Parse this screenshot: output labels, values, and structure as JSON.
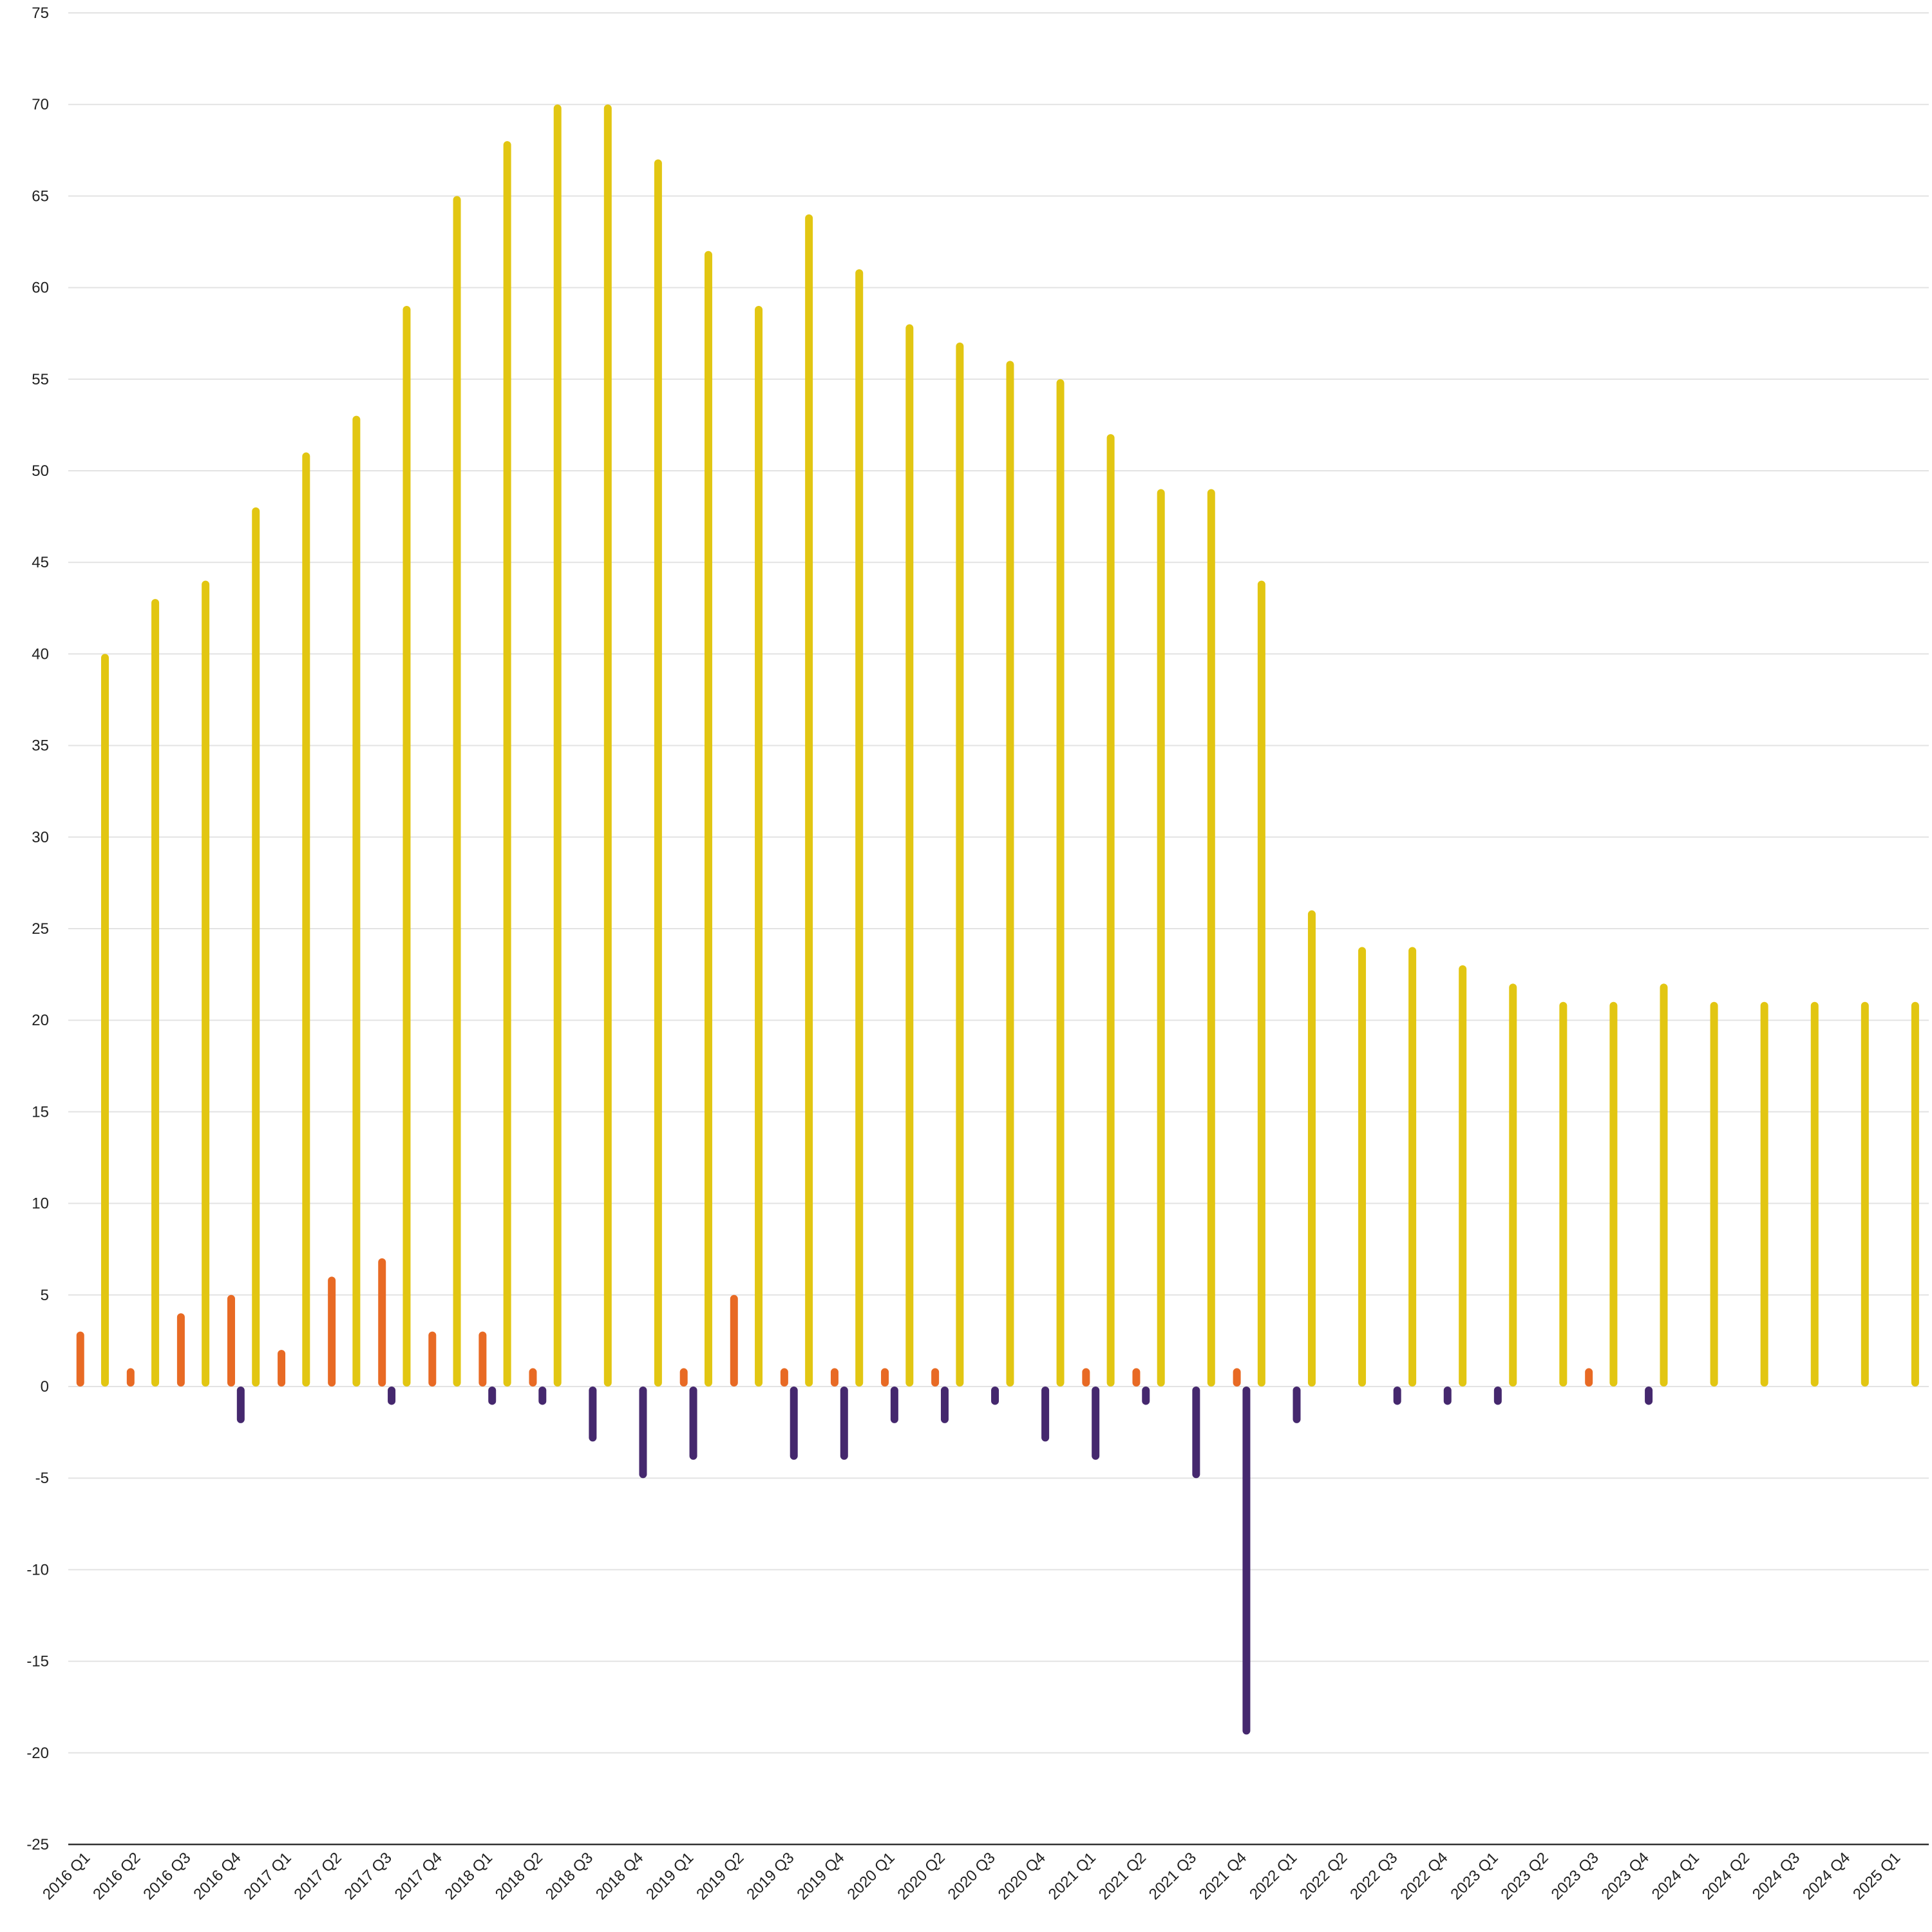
{
  "chart_data": {
    "type": "bar",
    "title": "",
    "xlabel": "",
    "ylabel": "",
    "ylim": [
      -25,
      75
    ],
    "yticks": [
      75,
      70,
      65,
      60,
      55,
      50,
      45,
      40,
      35,
      30,
      25,
      20,
      15,
      10,
      5,
      0,
      -5,
      -10,
      -15,
      -20,
      -25
    ],
    "grid": true,
    "legend": "none",
    "categories": [
      "2016 Q1",
      "2016 Q2",
      "2016 Q3",
      "2016 Q4",
      "2017 Q1",
      "2017 Q2",
      "2017 Q3",
      "2017 Q4",
      "2018 Q1",
      "2018 Q2",
      "2018 Q3",
      "2018 Q4",
      "2019 Q1",
      "2019 Q2",
      "2019 Q3",
      "2019 Q4",
      "2020 Q1",
      "2020 Q2",
      "2020 Q3",
      "2020 Q4",
      "2021 Q1",
      "2021 Q2",
      "2021 Q3",
      "2021 Q4",
      "2022 Q1",
      "2022 Q2",
      "2022 Q3",
      "2022 Q4",
      "2023 Q1",
      "2023 Q2",
      "2023 Q3",
      "2023 Q4",
      "2024 Q1",
      "2024 Q2",
      "2024 Q3",
      "2024 Q4",
      "2025 Q1"
    ],
    "series": [
      {
        "color": "#e86a24",
        "values": [
          3,
          1,
          4,
          5,
          2,
          6,
          7,
          3,
          3,
          1,
          0,
          0,
          1,
          5,
          1,
          1,
          1,
          1,
          0,
          0,
          1,
          1,
          0,
          1,
          0,
          0,
          0,
          0,
          0,
          0,
          1,
          0,
          0,
          0,
          0,
          0,
          0
        ]
      },
      {
        "color": "#45286e",
        "values": [
          0,
          0,
          0,
          -2,
          0,
          0,
          -1,
          0,
          -1,
          -1,
          -3,
          -5,
          -4,
          0,
          -4,
          -4,
          -2,
          -2,
          -1,
          -3,
          -4,
          -1,
          -5,
          -19,
          -2,
          0,
          -1,
          -1,
          -1,
          0,
          0,
          -1,
          0,
          0,
          0,
          0,
          0
        ]
      },
      {
        "color": "#e2c612",
        "values": [
          40,
          43,
          44,
          48,
          51,
          53,
          59,
          65,
          68,
          70,
          70,
          67,
          62,
          59,
          64,
          61,
          58,
          57,
          56,
          55,
          52,
          49,
          49,
          44,
          26,
          24,
          24,
          23,
          22,
          21,
          21,
          22,
          21,
          21,
          21,
          21,
          21
        ]
      }
    ]
  }
}
